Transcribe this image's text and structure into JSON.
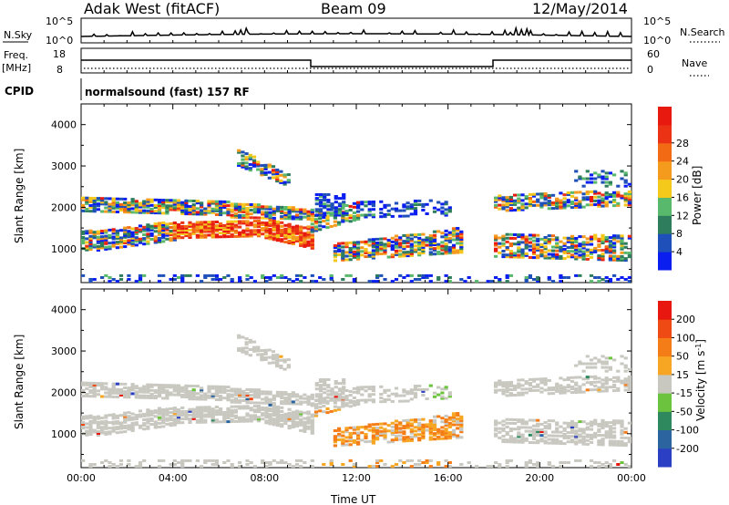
{
  "header": {
    "station": "Adak West (fitACF)",
    "beam": "Beam 09",
    "date": "12/May/2014"
  },
  "status_panels": {
    "nsky": {
      "label": "N.Sky",
      "tick_high": "10^5",
      "tick_low": "10^0",
      "right_label": "N.Search"
    },
    "freq": {
      "label_line1": "Freq.",
      "label_line2": "[MHz]",
      "tick_high": "18",
      "tick_low": "8",
      "right_tick_high": "60",
      "right_tick_low": "0",
      "right_label": "Nave"
    },
    "cpid": {
      "label": "CPID",
      "program": "normalsound (fast) 157 RF"
    }
  },
  "chart_data": [
    {
      "type": "heatmap",
      "name": "power",
      "ylabel": "Slant Range [km]",
      "ylim": [
        180,
        4500
      ],
      "y_ticks": [
        "1000",
        "2000",
        "3000",
        "4000"
      ],
      "x_ticks": [
        "00:00",
        "04:00",
        "08:00",
        "12:00",
        "16:00",
        "20:00",
        "00:00"
      ],
      "colorbar": {
        "label": "Power [dB]",
        "ticks": [
          "4",
          "8",
          "12",
          "16",
          "20",
          "24",
          "28"
        ],
        "colors": [
          "#0a1ef0",
          "#1f4fb8",
          "#2e7d5c",
          "#58b96c",
          "#f5c81c",
          "#f49a1c",
          "#f26b14",
          "#ec3214",
          "#e81a10"
        ]
      }
    },
    {
      "type": "heatmap",
      "name": "velocity",
      "ylabel": "Slant Range [km]",
      "ylim": [
        180,
        4500
      ],
      "y_ticks": [
        "1000",
        "2000",
        "3000",
        "4000"
      ],
      "x_ticks": [
        "00:00",
        "04:00",
        "08:00",
        "12:00",
        "16:00",
        "20:00",
        "00:00"
      ],
      "xlabel": "Time UT",
      "colorbar": {
        "label_main": "Velocity [m s",
        "label_sup": "-1",
        "label_end": "]",
        "ticks": [
          "200",
          "100",
          "50",
          "15",
          "-15",
          "-50",
          "-100",
          "-200"
        ],
        "colors": [
          "#2b3fc4",
          "#2c64a0",
          "#2e8a5e",
          "#6cc43e",
          "#c8c8c0",
          "#f6a622",
          "#f57d18",
          "#ef4a14",
          "#e81810"
        ]
      }
    }
  ]
}
